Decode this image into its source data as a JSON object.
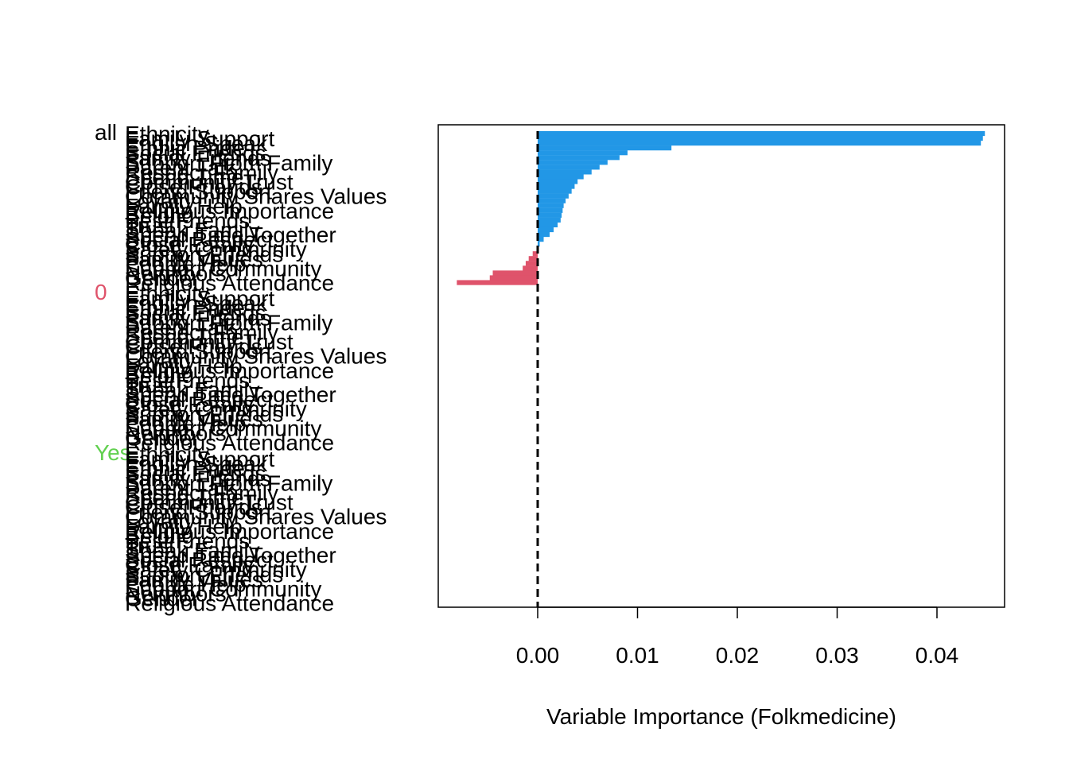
{
  "chart_data": {
    "type": "bar",
    "orientation": "horizontal",
    "xlabel": "Variable Importance (Folkmedicine)",
    "xlim": [
      -0.008,
      0.046
    ],
    "xticks": [
      0.0,
      0.01,
      0.02,
      0.03,
      0.04
    ],
    "reference_line": 0,
    "grid": false,
    "groups": [
      {
        "name": "all",
        "color": "#000000",
        "has_bars": true
      },
      {
        "name": "0",
        "color": "#DF536B",
        "has_bars": false
      },
      {
        "name": "Yes",
        "color": "#61D04F",
        "has_bars": false
      }
    ],
    "bar_colors": {
      "positive": "#2297E6",
      "negative": "#DF536B"
    },
    "categories": [
      "Ethnicity",
      "Family Support",
      "English Speak",
      "Ethnic Pride",
      "Social Friends",
      "Family Friends",
      "Support From Family",
      "Parent Talk",
      "Respect Family",
      "Spend Time",
      "Community Trust",
      "Close Friends",
      "Friend Support",
      "Community Shares Values",
      "Loyalty",
      "Family Help",
      "Religious Importance",
      "Belong",
      "Best Friends",
      "Trust",
      "Speak Family",
      "Spend Time Together",
      "Social Respect",
      "Close Family",
      "Safety Community",
      "Support Friends",
      "Family Values",
      "People Help",
      "Support Community",
      "Neighbors",
      "Gender",
      "Religious Attendance"
    ],
    "values": [
      0.0448,
      0.0446,
      0.0444,
      0.0134,
      0.009,
      0.0082,
      0.007,
      0.0062,
      0.0054,
      0.0046,
      0.004,
      0.0037,
      0.0034,
      0.0031,
      0.0028,
      0.0026,
      0.0025,
      0.0024,
      0.0023,
      0.002,
      0.0016,
      0.0012,
      0.0006,
      0.0002,
      -0.0001,
      -0.0005,
      -0.0009,
      -0.0012,
      -0.0015,
      -0.0045,
      -0.0048,
      -0.0081
    ]
  }
}
